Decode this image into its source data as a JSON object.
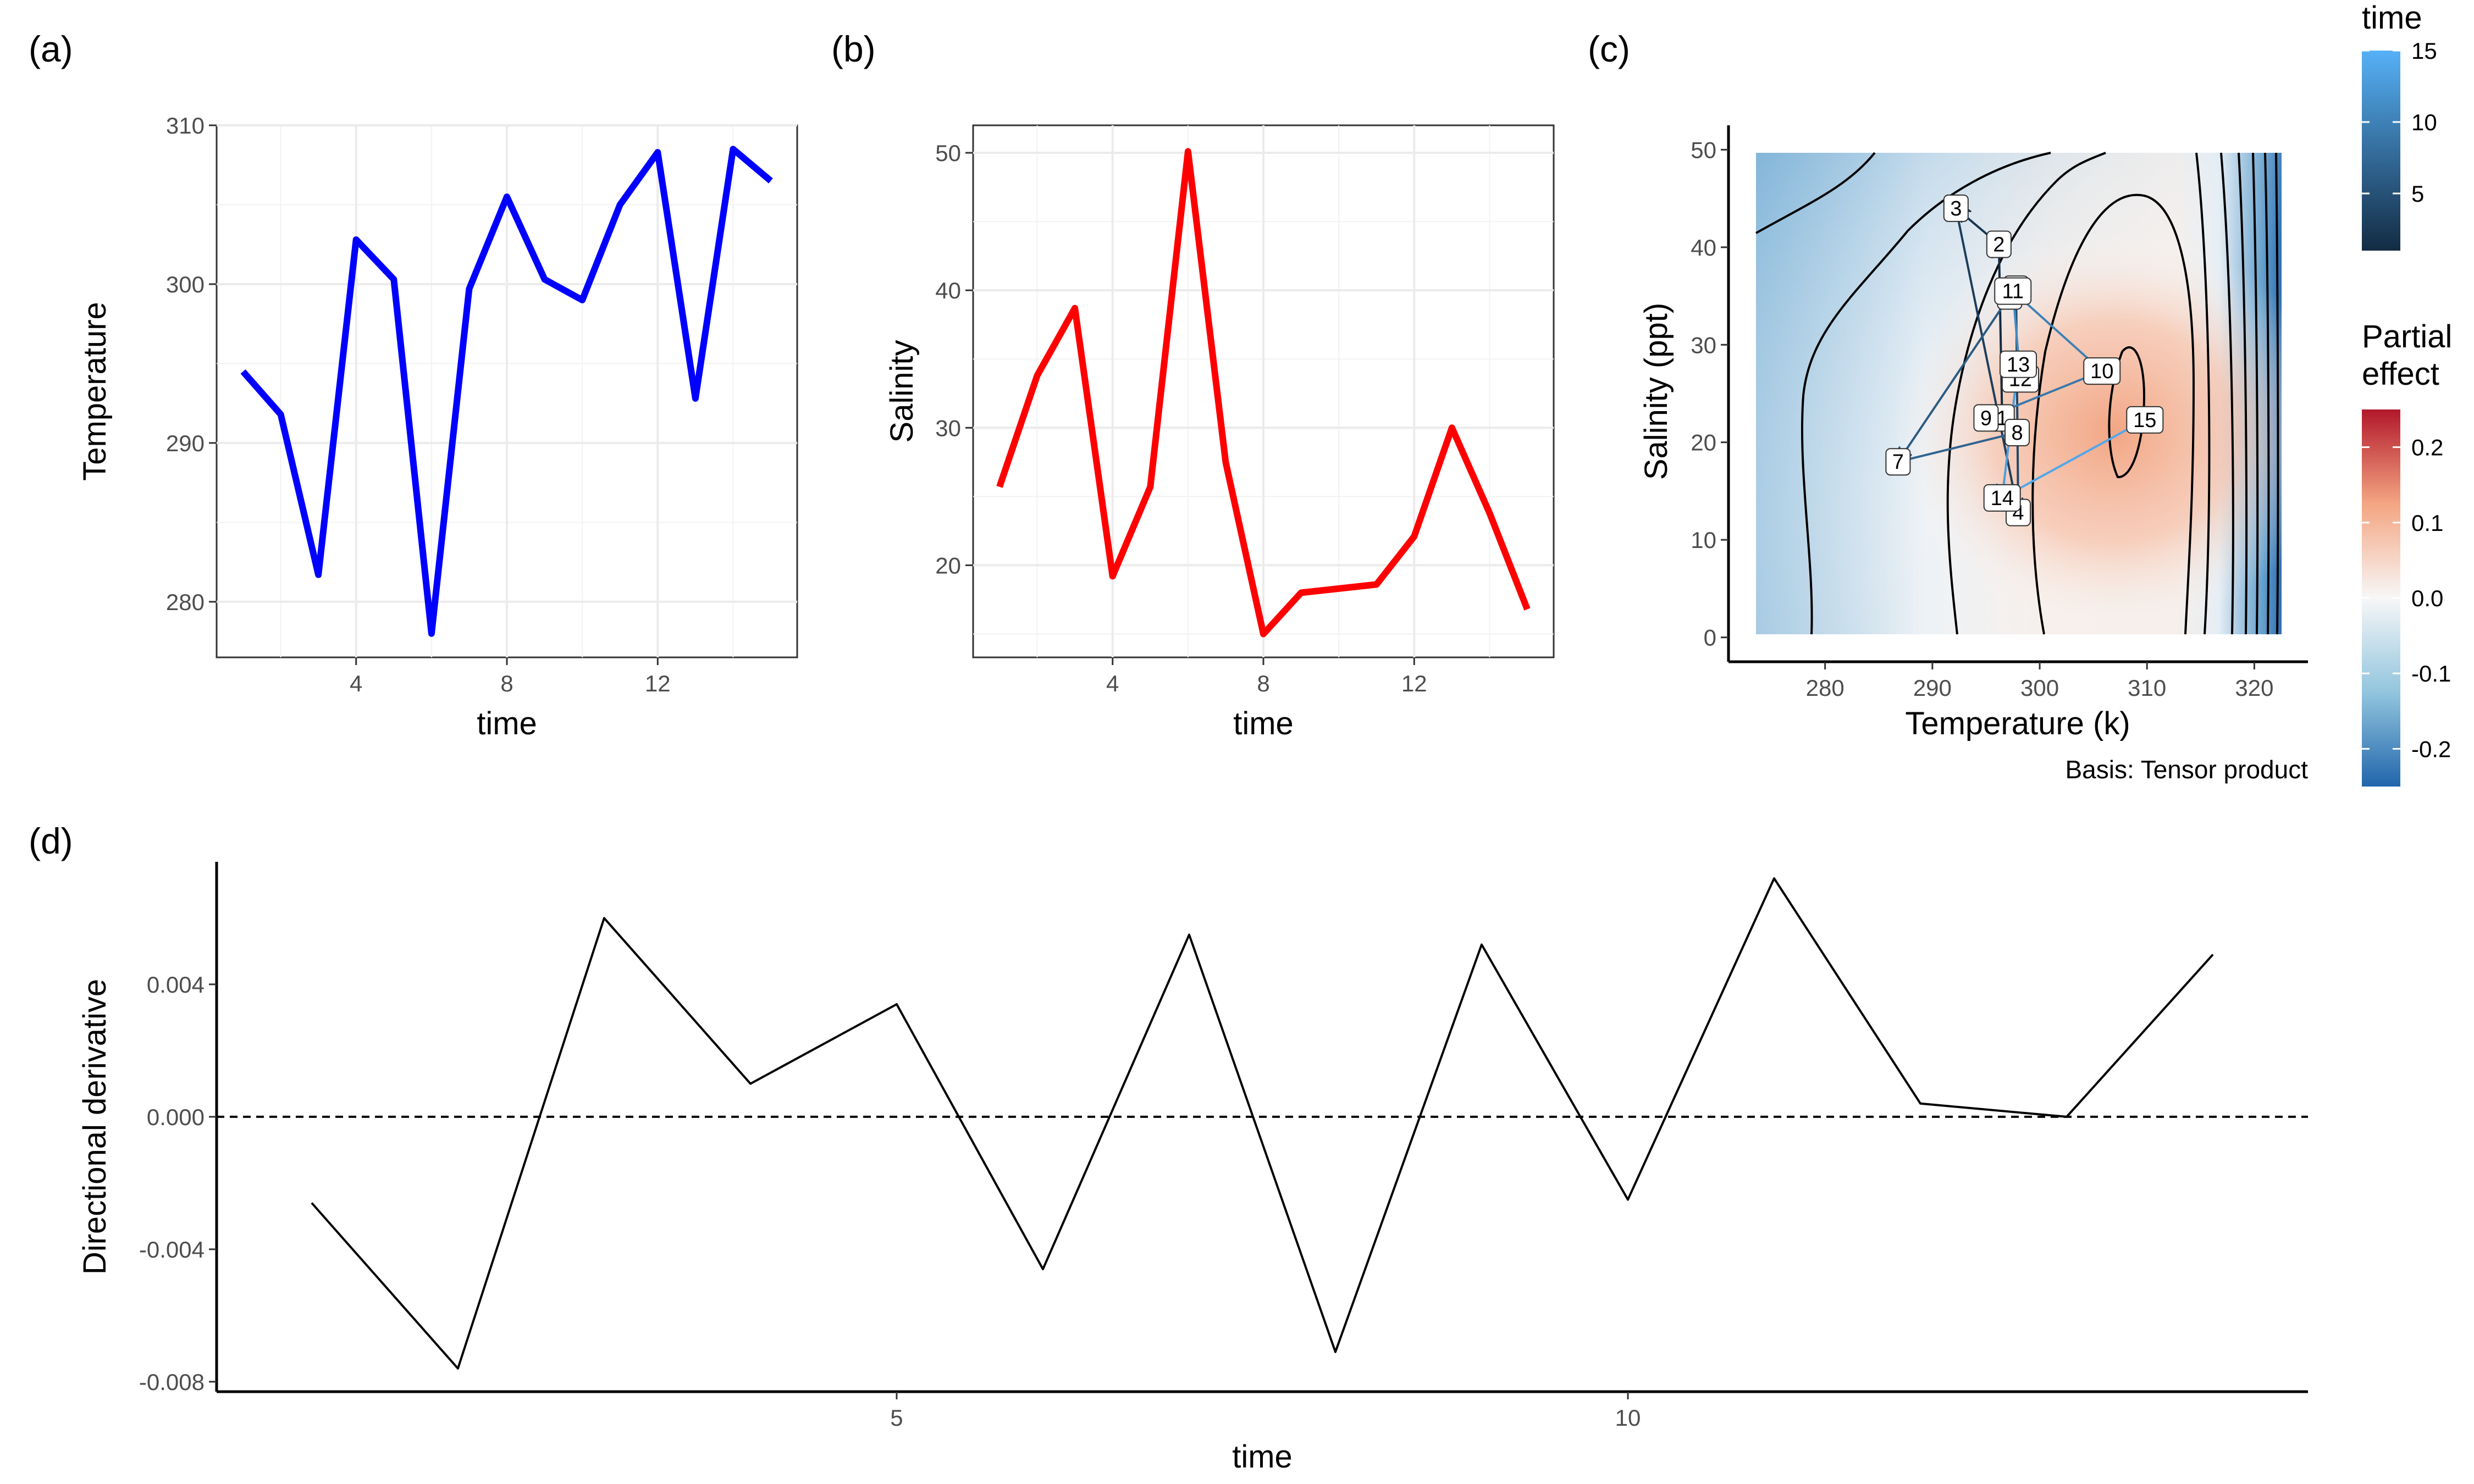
{
  "panel_labels": [
    "(a)",
    "(b)",
    "(c)",
    "(d)"
  ],
  "colors": {
    "temperature_line": "#0000ff",
    "salinity_line": "#ff0000",
    "derivative_line": "#000000",
    "time_low": "#132b43",
    "time_high": "#56b1f7",
    "effect_low": "#2166ac",
    "effect_mid": "#f7f7f7",
    "effect_high": "#b2182b"
  },
  "chart_data": [
    {
      "id": "a",
      "type": "line",
      "xlabel": "time",
      "ylabel": "Temperature",
      "x": [
        1,
        2,
        3,
        4,
        5,
        6,
        7,
        8,
        9,
        10,
        11,
        12,
        13,
        14,
        15
      ],
      "values": [
        294.5,
        291.8,
        281.7,
        302.8,
        300.3,
        278.0,
        299.7,
        305.5,
        300.3,
        299.0,
        305.0,
        308.3,
        292.8,
        308.5,
        306.5
      ],
      "xlim": [
        0.3,
        15.7
      ],
      "ylim": [
        276.5,
        310
      ],
      "xticks": [
        4,
        8,
        12
      ],
      "yticks": [
        280,
        290,
        300,
        310
      ],
      "grid": true
    },
    {
      "id": "b",
      "type": "line",
      "xlabel": "time",
      "ylabel": "Salinity",
      "x": [
        1,
        2,
        3,
        4,
        5,
        6,
        7,
        8,
        9,
        10,
        11,
        12,
        13,
        14,
        15
      ],
      "values": [
        25.7,
        33.8,
        38.7,
        19.2,
        25.7,
        50.1,
        27.5,
        15.0,
        18.0,
        18.3,
        18.6,
        22.1,
        30.0,
        23.8,
        16.8
      ],
      "xlim": [
        0.3,
        15.7
      ],
      "ylim": [
        13.3,
        52
      ],
      "xticks": [
        4,
        8,
        12
      ],
      "yticks": [
        20,
        30,
        40,
        50
      ],
      "grid": true
    },
    {
      "id": "c",
      "type": "heatmap",
      "xlabel": "Temperature (k)",
      "ylabel": "Salinity (ppt)",
      "xlim": [
        271,
        325
      ],
      "ylim": [
        -2.5,
        52.5
      ],
      "xticks": [
        280,
        290,
        300,
        310,
        320
      ],
      "yticks": [
        0,
        10,
        20,
        30,
        40,
        50
      ],
      "surface_x_range": [
        273,
        323.5
      ],
      "surface_y_range": [
        0,
        50
      ],
      "basis": "Basis: Tensor product",
      "trajectory": [
        {
          "time": 1,
          "temperature": 296.5,
          "salinity": 22.5
        },
        {
          "time": 2,
          "temperature": 296.2,
          "salinity": 40.3
        },
        {
          "time": 3,
          "temperature": 292.2,
          "salinity": 44.0
        },
        {
          "time": 4,
          "temperature": 298.0,
          "salinity": 12.8
        },
        {
          "time": 5,
          "temperature": 297.8,
          "salinity": 35.7
        },
        {
          "time": 6,
          "temperature": 297.2,
          "salinity": 35.0
        },
        {
          "time": 7,
          "temperature": 286.8,
          "salinity": 18.0
        },
        {
          "time": 8,
          "temperature": 297.9,
          "salinity": 21.0
        },
        {
          "time": 9,
          "temperature": 295.0,
          "salinity": 22.5
        },
        {
          "time": 10,
          "temperature": 305.8,
          "salinity": 27.3
        },
        {
          "time": 11,
          "temperature": 297.5,
          "salinity": 35.5
        },
        {
          "time": 12,
          "temperature": 298.2,
          "salinity": 26.5
        },
        {
          "time": 13,
          "temperature": 298.0,
          "salinity": 28.0
        },
        {
          "time": 14,
          "temperature": 296.5,
          "salinity": 14.3
        },
        {
          "time": 15,
          "temperature": 309.8,
          "salinity": 22.3
        }
      ]
    },
    {
      "id": "d",
      "type": "line",
      "xlabel": "time",
      "ylabel": "Directional derivative",
      "x": [
        1,
        2,
        3,
        4,
        5,
        6,
        7,
        8,
        9,
        10,
        11,
        12,
        13,
        14
      ],
      "values": [
        -0.0026,
        -0.0076,
        0.006,
        0.001,
        0.0034,
        -0.0046,
        0.0055,
        -0.0071,
        0.0052,
        -0.0025,
        0.0072,
        0.0004,
        0.0,
        0.0049
      ],
      "xlim": [
        0.35,
        14.65
      ],
      "ylim": [
        -0.0083,
        0.0077
      ],
      "xticks": [
        5,
        10
      ],
      "yticks": [
        -0.008,
        -0.004,
        0.0,
        0.004
      ],
      "ytick_labels": [
        "-0.008",
        "-0.004",
        "0.000",
        "0.004"
      ],
      "reference_line": 0,
      "grid": false
    }
  ],
  "legends": {
    "time": {
      "title": "time",
      "ticks": [
        5,
        10,
        15
      ],
      "range": [
        1,
        15
      ]
    },
    "effect": {
      "title_lines": [
        "Partial",
        "effect"
      ],
      "ticks": [
        0.2,
        0.1,
        0.0,
        -0.1,
        -0.2
      ],
      "tick_labels": [
        "0.2",
        "0.1",
        "0.0",
        "-0.1",
        "-0.2"
      ],
      "range": [
        -0.25,
        0.25
      ]
    }
  }
}
